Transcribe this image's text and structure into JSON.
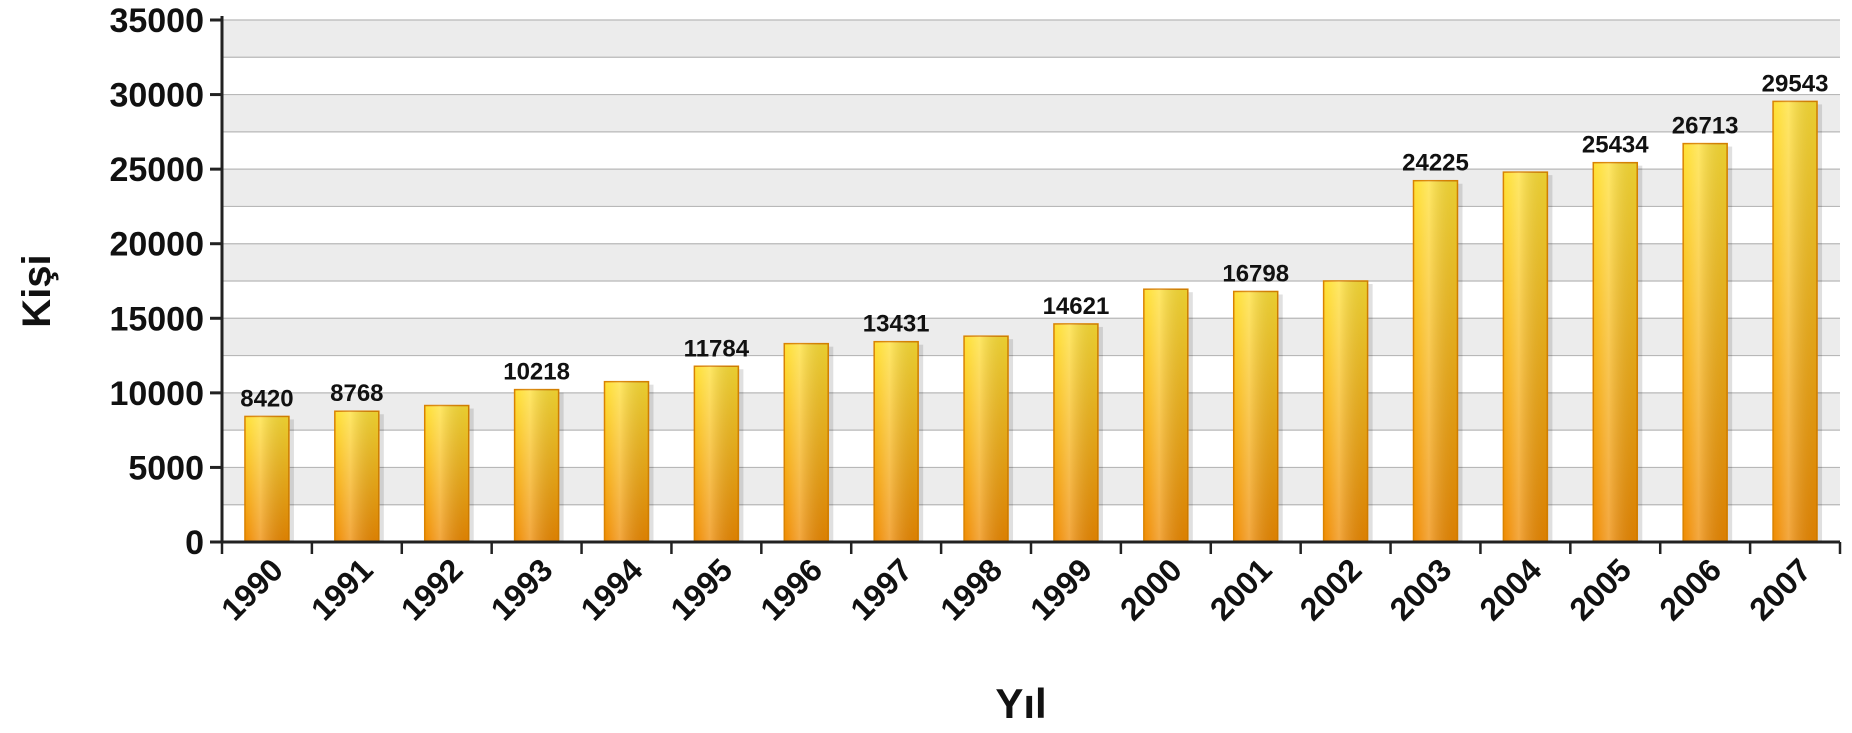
{
  "chart_data": {
    "type": "bar",
    "categories": [
      "1990",
      "1991",
      "1992",
      "1993",
      "1994",
      "1995",
      "1996",
      "1997",
      "1998",
      "1999",
      "2000",
      "2001",
      "2002",
      "2003",
      "2004",
      "2005",
      "2006",
      "2007"
    ],
    "values": [
      8420,
      8768,
      9150,
      10218,
      10750,
      11784,
      13300,
      13431,
      13800,
      14621,
      16950,
      16798,
      17500,
      24225,
      24800,
      25434,
      26713,
      29543
    ],
    "data_labels": [
      "8420",
      "8768",
      "",
      "10218",
      "",
      "11784",
      "",
      "13431",
      "",
      "14621",
      "",
      "16798",
      "",
      "24225",
      "",
      "25434",
      "26713",
      "29543"
    ],
    "xlabel": "Yıl",
    "ylabel": "Kişi",
    "ylim": [
      0,
      35000
    ],
    "yticks": [
      0,
      5000,
      10000,
      15000,
      20000,
      25000,
      30000,
      35000
    ],
    "grid": true,
    "colors": {
      "bar_top": "#ffe033",
      "bar_bottom": "#ef8a00",
      "bar_edge": "#d98200",
      "band": "#ececec",
      "grid": "#b8b8b8"
    }
  }
}
